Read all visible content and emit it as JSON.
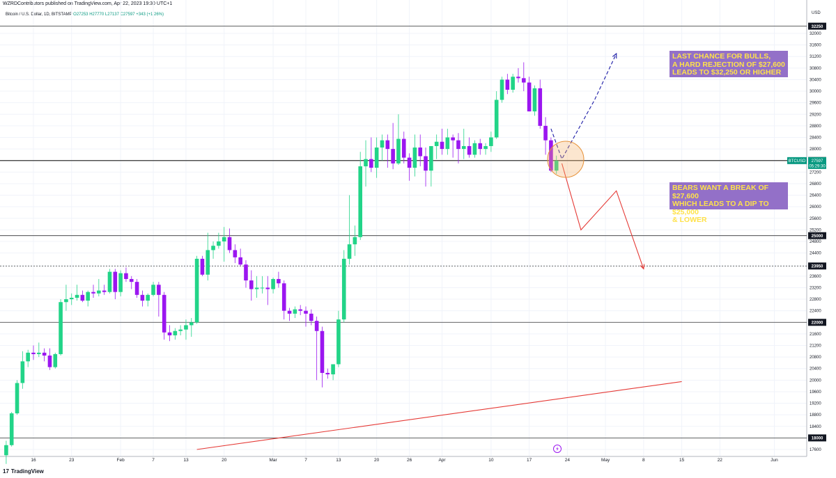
{
  "header": {
    "published": "WZRDContributors published on TradingView.com, Apr 22, 2023 19:30 UTC+1"
  },
  "symbol_line": {
    "name": "Bitcoin / U.S. Dollar, 1D, BITSTAMP",
    "o": "O27253",
    "h": "H27770",
    "l": "L27137",
    "c": "C27597",
    "chg": "+343 (+1.26%)"
  },
  "footer": {
    "brand": "TradingView"
  },
  "colors": {
    "up": "#22d488",
    "down": "#9b16f0",
    "annotation_bg": "#9370c8",
    "annotation_text": "#ffe24a",
    "bull_path": "#1a1aa6",
    "bear_path": "#e53935"
  },
  "annotations": {
    "bulls": [
      "LAST CHANCE FOR BULLS,",
      "A HARD REJECTION OF $27,600",
      "LEADS TO $32,250 OR HIGHER"
    ],
    "bears": [
      "BEARS WANT A BREAK OF $27,600",
      "WHICH LEADS TO A DIP TO $25,000",
      "& LOWER"
    ]
  },
  "chart_data": {
    "type": "candlestick",
    "currency_label": "USD",
    "y_ticks": [
      17600,
      18000,
      18400,
      18800,
      19200,
      19600,
      20000,
      20400,
      20800,
      21200,
      21600,
      22000,
      22400,
      22800,
      23200,
      23600,
      23950,
      24400,
      24800,
      25000,
      25200,
      25600,
      26000,
      26400,
      26800,
      27200,
      27600,
      28000,
      28400,
      28800,
      29200,
      29600,
      30000,
      30400,
      30800,
      31200,
      31600,
      32000,
      32250
    ],
    "y_ticks_hidden_by_badges": [],
    "ylim": [
      17400,
      32700
    ],
    "x_ticks": [
      {
        "label": "16",
        "day": 0
      },
      {
        "label": "23",
        "day": 7
      },
      {
        "label": "Feb",
        "day": 16
      },
      {
        "label": "7",
        "day": 22
      },
      {
        "label": "13",
        "day": 28
      },
      {
        "label": "20",
        "day": 35
      },
      {
        "label": "Mar",
        "day": 44
      },
      {
        "label": "7",
        "day": 50
      },
      {
        "label": "13",
        "day": 56
      },
      {
        "label": "20",
        "day": 63
      },
      {
        "label": "26",
        "day": 69
      },
      {
        "label": "Apr",
        "day": 75
      },
      {
        "label": "10",
        "day": 84
      },
      {
        "label": "17",
        "day": 91
      },
      {
        "label": "24",
        "day": 98
      },
      {
        "label": "May",
        "day": 105
      },
      {
        "label": "8",
        "day": 112
      },
      {
        "label": "15",
        "day": 119
      },
      {
        "label": "22",
        "day": 126
      },
      {
        "label": "Jun",
        "day": 136
      }
    ],
    "levels": [
      {
        "value": 32250,
        "label": "32250"
      },
      {
        "value": 27600,
        "label": "27600"
      },
      {
        "value": 25000,
        "label": "25000"
      },
      {
        "value": 23950,
        "label": "23950",
        "dashed": true
      },
      {
        "value": 22000,
        "label": "22000"
      },
      {
        "value": 18000,
        "label": "18000"
      }
    ],
    "price_badge": {
      "label": "BTCUSD",
      "price": "27597",
      "countdown": "05:29:30",
      "value": 27597
    },
    "candles": [
      [
        -5,
        17400,
        17900,
        17100,
        17750
      ],
      [
        -4,
        17750,
        18900,
        17700,
        18850
      ],
      [
        -3,
        18850,
        20000,
        18800,
        19900
      ],
      [
        -2,
        19900,
        21000,
        19700,
        20650
      ],
      [
        -1,
        20650,
        21050,
        20450,
        20950
      ],
      [
        0,
        20950,
        21200,
        20700,
        20900
      ],
      [
        1,
        20900,
        21300,
        20800,
        20950
      ],
      [
        2,
        20950,
        21100,
        20650,
        20850
      ],
      [
        3,
        20850,
        21100,
        20350,
        20450
      ],
      [
        4,
        20450,
        20950,
        20400,
        20900
      ],
      [
        5,
        20900,
        22800,
        20850,
        22700
      ],
      [
        6,
        22700,
        23300,
        22400,
        22800
      ],
      [
        7,
        22800,
        23000,
        22600,
        22850
      ],
      [
        8,
        22850,
        23300,
        22750,
        22950
      ],
      [
        9,
        22950,
        23100,
        22700,
        22750
      ],
      [
        10,
        22750,
        23100,
        22550,
        23050
      ],
      [
        11,
        23050,
        23300,
        22850,
        23000
      ],
      [
        12,
        23000,
        23500,
        22900,
        23100
      ],
      [
        13,
        23100,
        23300,
        22950,
        23050
      ],
      [
        14,
        23050,
        23850,
        23000,
        23750
      ],
      [
        15,
        23750,
        23850,
        22800,
        23050
      ],
      [
        16,
        23050,
        23800,
        22900,
        23700
      ],
      [
        17,
        23700,
        23900,
        23400,
        23500
      ],
      [
        18,
        23500,
        23600,
        23150,
        23400
      ],
      [
        19,
        23400,
        23500,
        22850,
        22950
      ],
      [
        20,
        22950,
        23100,
        22550,
        22750
      ],
      [
        21,
        22750,
        23000,
        22550,
        22950
      ],
      [
        22,
        22950,
        23400,
        22900,
        23300
      ],
      [
        23,
        23300,
        23400,
        22200,
        22950
      ],
      [
        24,
        22950,
        23050,
        21400,
        21650
      ],
      [
        25,
        21650,
        21900,
        21350,
        21550
      ],
      [
        26,
        21550,
        21800,
        21400,
        21700
      ],
      [
        27,
        21700,
        21900,
        21550,
        21750
      ],
      [
        28,
        21750,
        22100,
        21400,
        21900
      ],
      [
        29,
        21900,
        22150,
        21500,
        22000
      ],
      [
        30,
        22000,
        24300,
        21950,
        24200
      ],
      [
        31,
        24200,
        24300,
        23600,
        23650
      ],
      [
        32,
        23650,
        25100,
        23450,
        24500
      ],
      [
        33,
        24500,
        24800,
        24200,
        24650
      ],
      [
        34,
        24650,
        25100,
        24550,
        24800
      ],
      [
        35,
        24800,
        25300,
        24100,
        24950
      ],
      [
        36,
        24950,
        25250,
        24400,
        24500
      ],
      [
        37,
        24500,
        24700,
        24050,
        24250
      ],
      [
        38,
        24250,
        24550,
        23950,
        24000
      ],
      [
        39,
        24000,
        24150,
        23200,
        23450
      ],
      [
        40,
        23450,
        23800,
        22750,
        23150
      ],
      [
        41,
        23150,
        23600,
        22850,
        23200
      ],
      [
        42,
        23200,
        23600,
        23000,
        23200
      ],
      [
        43,
        23200,
        23600,
        22600,
        23150
      ],
      [
        44,
        23150,
        23550,
        23000,
        23500
      ],
      [
        45,
        23500,
        23750,
        23200,
        23350
      ],
      [
        46,
        23350,
        23450,
        22100,
        22400
      ],
      [
        47,
        22400,
        22500,
        22050,
        22300
      ],
      [
        48,
        22300,
        22550,
        22150,
        22450
      ],
      [
        49,
        22450,
        22600,
        22250,
        22400
      ],
      [
        50,
        22400,
        22550,
        21850,
        22300
      ],
      [
        51,
        22300,
        22450,
        21900,
        22050
      ],
      [
        52,
        22050,
        22200,
        20000,
        21700
      ],
      [
        53,
        21700,
        21850,
        19750,
        20250
      ],
      [
        54,
        20250,
        20400,
        20050,
        20200
      ],
      [
        55,
        20200,
        20500,
        20000,
        20550
      ],
      [
        56,
        20550,
        22400,
        20450,
        22100
      ],
      [
        57,
        22100,
        24500,
        22000,
        24200
      ],
      [
        58,
        24200,
        26400,
        24000,
        24700
      ],
      [
        59,
        24700,
        25350,
        24300,
        24950
      ],
      [
        60,
        24950,
        27900,
        24850,
        27400
      ],
      [
        61,
        27400,
        28300,
        26700,
        27650
      ],
      [
        62,
        27650,
        28400,
        27200,
        27350
      ],
      [
        63,
        27350,
        28400,
        27000,
        28050
      ],
      [
        64,
        28050,
        28500,
        27600,
        28300
      ],
      [
        65,
        28300,
        28500,
        27350,
        28000
      ],
      [
        66,
        28000,
        28900,
        27300,
        27500
      ],
      [
        67,
        27500,
        29200,
        27450,
        28350
      ],
      [
        68,
        28350,
        28600,
        27500,
        27700
      ],
      [
        69,
        27700,
        27850,
        26900,
        27350
      ],
      [
        70,
        27350,
        28500,
        27050,
        28050
      ],
      [
        71,
        28050,
        28500,
        27400,
        27750
      ],
      [
        72,
        27750,
        28050,
        26700,
        27250
      ],
      [
        73,
        27250,
        28000,
        26700,
        28100
      ],
      [
        74,
        28100,
        28500,
        27650,
        28250
      ],
      [
        75,
        28250,
        28700,
        27800,
        28000
      ],
      [
        76,
        28000,
        28700,
        27800,
        28400
      ],
      [
        77,
        28400,
        28500,
        27700,
        28300
      ],
      [
        78,
        28300,
        28550,
        27500,
        28000
      ],
      [
        79,
        28000,
        28700,
        27650,
        28100
      ],
      [
        80,
        28100,
        28400,
        27700,
        27800
      ],
      [
        81,
        27800,
        28300,
        27700,
        28200
      ],
      [
        82,
        28200,
        28350,
        27800,
        28000
      ],
      [
        83,
        28000,
        28200,
        27800,
        28100
      ],
      [
        84,
        28100,
        28600,
        27900,
        28400
      ],
      [
        85,
        28400,
        30000,
        28350,
        29700
      ],
      [
        86,
        29700,
        30500,
        29600,
        30400
      ],
      [
        87,
        30400,
        30600,
        29900,
        30050
      ],
      [
        88,
        30050,
        30600,
        29950,
        30500
      ],
      [
        89,
        30500,
        30800,
        30300,
        30450
      ],
      [
        90,
        30450,
        31000,
        30000,
        30300
      ],
      [
        91,
        30300,
        30500,
        29300,
        29300
      ],
      [
        92,
        29300,
        30200,
        29150,
        30100
      ],
      [
        93,
        30100,
        30400,
        28700,
        28800
      ],
      [
        94,
        28800,
        29100,
        27800,
        28300
      ],
      [
        95,
        28300,
        28400,
        27200,
        27250
      ],
      [
        96,
        27250,
        27770,
        27137,
        27597
      ]
    ],
    "paths": [
      {
        "name": "bull-projection",
        "dashed": true,
        "points": [
          [
            95,
            28700
          ],
          [
            97,
            27650
          ],
          [
            103,
            29700
          ],
          [
            107,
            31300
          ]
        ]
      },
      {
        "name": "bear-projection",
        "dashed": false,
        "points": [
          [
            97,
            27500
          ],
          [
            100.5,
            25200
          ],
          [
            107,
            26550
          ],
          [
            112,
            23850
          ]
        ]
      },
      {
        "name": "support-trendline",
        "dashed": false,
        "points": [
          [
            30,
            17600
          ],
          [
            119,
            19950
          ]
        ]
      }
    ]
  }
}
